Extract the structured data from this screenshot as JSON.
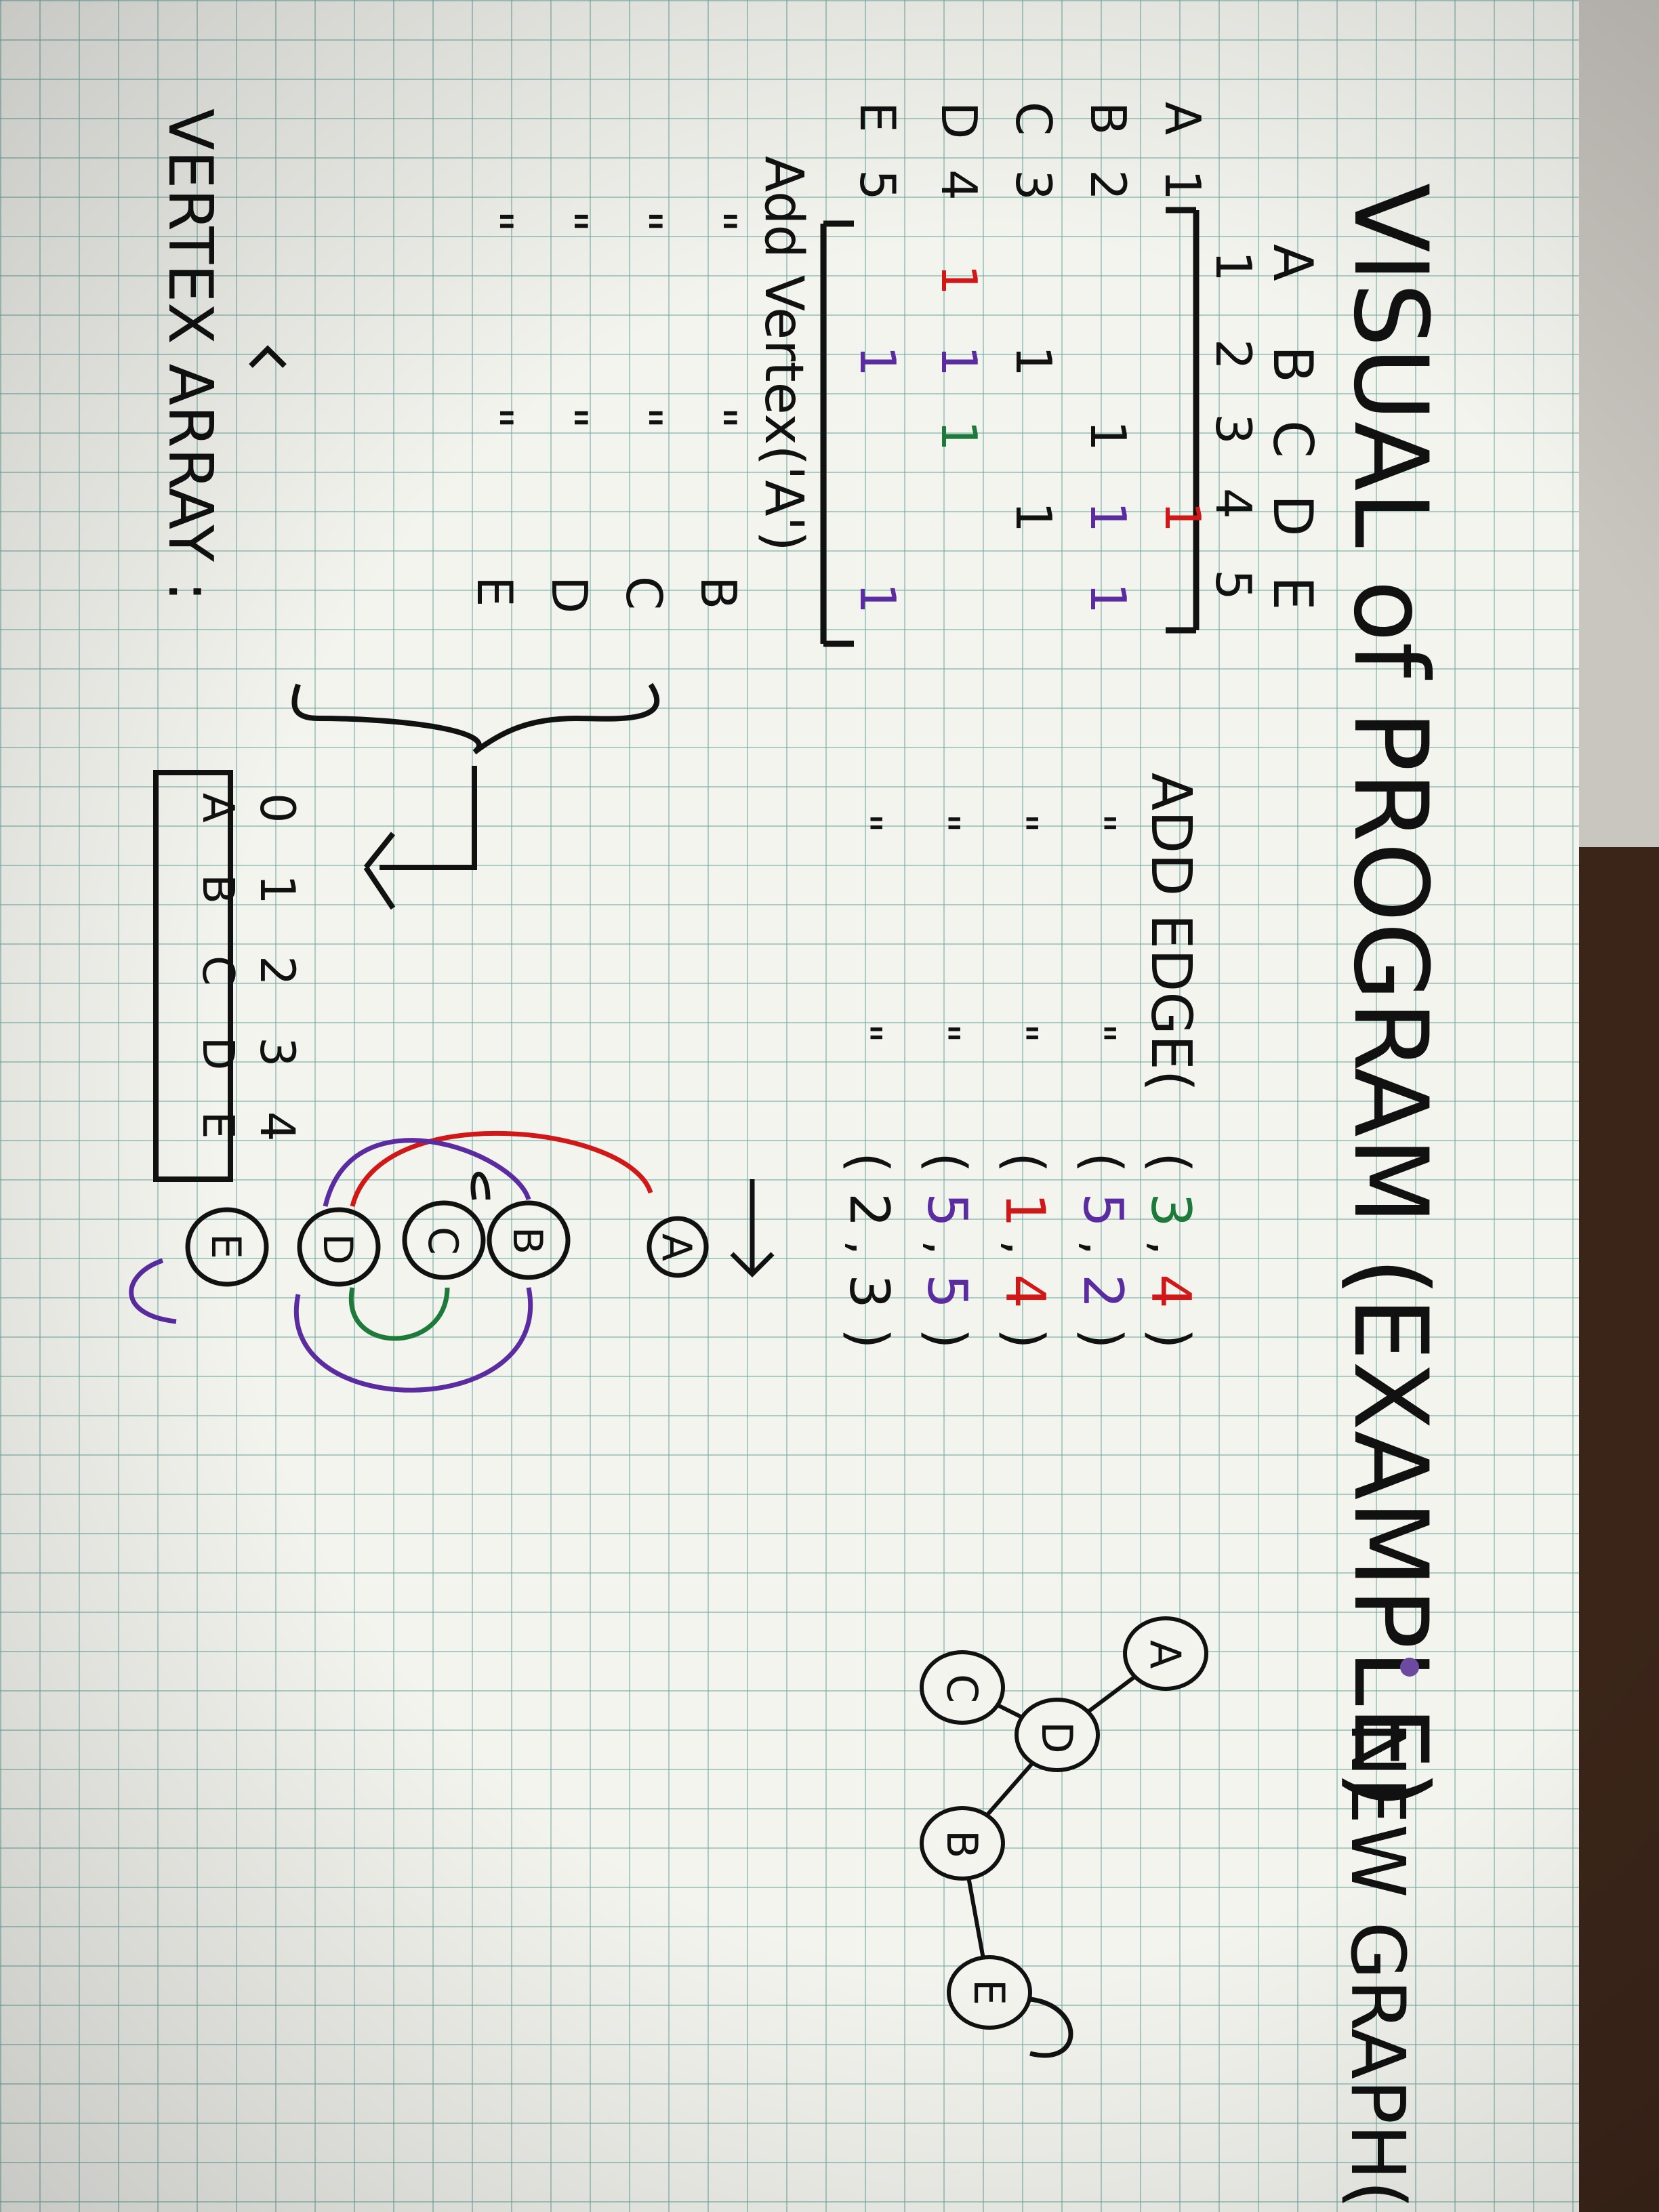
{
  "title": "VISUAL of PROGRAM (EXAMPLE)",
  "subtitle": "NEW GRAPH(S)",
  "matrix": {
    "col_letters": [
      "A",
      "B",
      "C",
      "D",
      "E"
    ],
    "col_numbers": [
      "1",
      "2",
      "3",
      "4",
      "5"
    ],
    "row_labels": [
      {
        "letter": "A",
        "number": "1"
      },
      {
        "letter": "B",
        "number": "2"
      },
      {
        "letter": "C",
        "number": "3"
      },
      {
        "letter": "D",
        "number": "4"
      },
      {
        "letter": "E",
        "number": "5"
      }
    ],
    "cells": [
      {
        "row": 1,
        "col": 4,
        "value": "1",
        "color": "#d01818"
      },
      {
        "row": 2,
        "col": 3,
        "value": "1",
        "color": "#111111"
      },
      {
        "row": 2,
        "col": 4,
        "value": "1",
        "color": "#5a2ca0"
      },
      {
        "row": 2,
        "col": 5,
        "value": "1",
        "color": "#5a2ca0"
      },
      {
        "row": 3,
        "col": 2,
        "value": "1",
        "color": "#111111"
      },
      {
        "row": 3,
        "col": 4,
        "value": "1",
        "color": "#111111"
      },
      {
        "row": 4,
        "col": 1,
        "value": "1",
        "color": "#d01818"
      },
      {
        "row": 4,
        "col": 2,
        "value": "1",
        "color": "#5a2ca0"
      },
      {
        "row": 4,
        "col": 3,
        "value": "1",
        "color": "#1e7a3a"
      },
      {
        "row": 5,
        "col": 2,
        "value": "1",
        "color": "#5a2ca0"
      },
      {
        "row": 5,
        "col": 5,
        "value": "1",
        "color": "#5a2ca0"
      }
    ]
  },
  "add_vertex": {
    "call": "Add Vertex('A')",
    "ditto": "\"",
    "args": [
      "B",
      "C",
      "D",
      "E"
    ]
  },
  "add_edge": {
    "call": "ADD EDGE(",
    "ditto": "\"",
    "rows": [
      {
        "a": "3",
        "b": "4",
        "color_a": "#1e7a3a",
        "color_b": "#d01818"
      },
      {
        "a": "5",
        "b": "2",
        "color_a": "#5a2ca0",
        "color_b": "#5a2ca0"
      },
      {
        "a": "1",
        "b": "4",
        "color_a": "#d01818",
        "color_b": "#d01818"
      },
      {
        "a": "5",
        "b": "5",
        "color_a": "#5a2ca0",
        "color_b": "#5a2ca0"
      },
      {
        "a": "2",
        "b": "3",
        "color_a": "#111111",
        "color_b": "#111111"
      }
    ]
  },
  "vertex_array": {
    "label": "VERTEX ARRAY :",
    "indices": [
      "0",
      "1",
      "2",
      "3",
      "4"
    ],
    "values": [
      "A",
      "B",
      "C",
      "D",
      "E"
    ]
  },
  "graph_chain": [
    "A",
    "B",
    "C",
    "D",
    "E"
  ],
  "graph_tree": [
    "A",
    "D",
    "C",
    "B",
    "E"
  ],
  "colors": {
    "ink": "#111111",
    "red": "#d01818",
    "purple": "#5a2ca0",
    "green": "#1e7a3a"
  }
}
